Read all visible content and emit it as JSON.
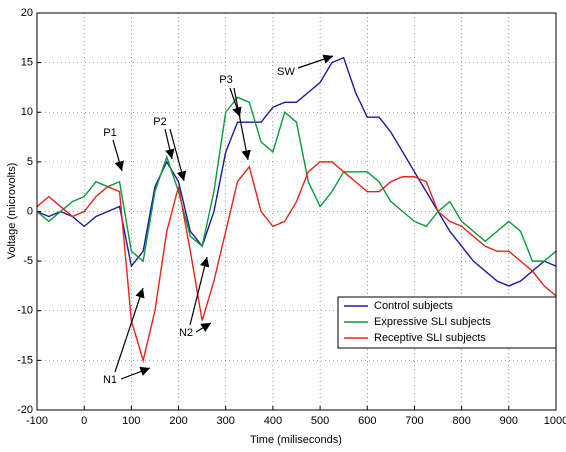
{
  "chart_data": {
    "type": "line",
    "xlabel": "Time (miliseconds)",
    "ylabel": "Voltage (microvolts)",
    "x": [
      -100,
      -75,
      -50,
      -25,
      0,
      25,
      50,
      75,
      100,
      125,
      150,
      175,
      200,
      225,
      250,
      275,
      300,
      325,
      350,
      375,
      400,
      425,
      450,
      475,
      500,
      525,
      550,
      575,
      600,
      625,
      650,
      675,
      700,
      725,
      750,
      775,
      800,
      825,
      850,
      875,
      900,
      925,
      950,
      975,
      1000
    ],
    "series": [
      {
        "name": "Control subjects",
        "color": "#1a1aa0",
        "values": [
          0,
          -0.5,
          0,
          -0.5,
          -1.5,
          -0.5,
          0,
          0.5,
          -5.5,
          -4,
          2.5,
          5,
          3,
          -2,
          -3.5,
          0,
          6,
          9,
          9,
          9,
          10.5,
          11,
          11,
          12,
          13,
          15,
          15.5,
          12,
          9.5,
          9.5,
          8,
          6,
          4,
          2,
          0,
          -2,
          -3.5,
          -5,
          -6,
          -7,
          -7.5,
          -7,
          -6,
          -5,
          -5.5
        ]
      },
      {
        "name": "Expressive SLI subjects",
        "color": "#0a9a3a",
        "values": [
          0,
          -1,
          0,
          1,
          1.5,
          3,
          2.5,
          3,
          -4,
          -5,
          2,
          5.5,
          2,
          -2.5,
          -3.5,
          2,
          10,
          11.5,
          11,
          7,
          6,
          10,
          9,
          3,
          0.5,
          2,
          4,
          4,
          4,
          3,
          1,
          0,
          -1,
          -1.5,
          0,
          1,
          -1,
          -2,
          -3,
          -2,
          -1,
          -2,
          -5,
          -5,
          -4
        ]
      },
      {
        "name": "Receptive SLI subjects",
        "color": "#e8231e",
        "values": [
          0.5,
          1.5,
          0.5,
          -0.5,
          0,
          1.5,
          2.5,
          2,
          -11,
          -15,
          -10,
          -2,
          2.5,
          -4,
          -11,
          -7,
          -2,
          3,
          4.5,
          0,
          -1.5,
          -1,
          1,
          4,
          5,
          5,
          4,
          3,
          2,
          2,
          3,
          3.5,
          3.5,
          3,
          0,
          -1,
          -1.5,
          -2.5,
          -3.5,
          -4,
          -4,
          -5,
          -6,
          -7.5,
          -8.5
        ]
      }
    ],
    "xlim": [
      -100,
      1000
    ],
    "xticks": [
      -100,
      0,
      100,
      200,
      300,
      400,
      500,
      600,
      700,
      800,
      900,
      1000
    ],
    "ylim": [
      -20,
      20
    ],
    "yticks": [
      -20,
      -15,
      -10,
      -5,
      0,
      5,
      10,
      15,
      20
    ],
    "grid": true,
    "legend": "lower right",
    "annotations": [
      {
        "text": "P1"
      },
      {
        "text": "P2"
      },
      {
        "text": "P3"
      },
      {
        "text": "SW"
      },
      {
        "text": "N1"
      },
      {
        "text": "N2"
      }
    ]
  }
}
